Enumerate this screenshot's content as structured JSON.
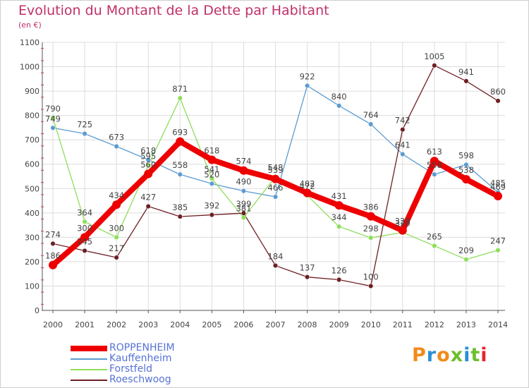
{
  "title": "Evolution du Montant de la Dette par Habitant",
  "subtitle": "(en €)",
  "logo": {
    "text": "Proxiti",
    "colors": [
      "#f28a1a",
      "#2a8fd6",
      "#f28a1a",
      "#6cbf2e",
      "#2a8fd6",
      "#6cbf2e",
      "#e8262c"
    ]
  },
  "chart_data": {
    "type": "line",
    "x": [
      "2000",
      "2001",
      "2002",
      "2003",
      "2004",
      "2005",
      "2006",
      "2007",
      "2008",
      "2009",
      "2010",
      "2011",
      "2012",
      "2013",
      "2014"
    ],
    "yticks": [
      "0",
      "100",
      "200",
      "300",
      "400",
      "500",
      "600",
      "700",
      "800",
      "900",
      "1000",
      "1100"
    ],
    "ylim": [
      0,
      1100
    ],
    "grid": true,
    "legend_position": "bottom-left",
    "series": [
      {
        "name": "Kauffenheim",
        "color": "#5b9bd1",
        "values": [
          749,
          725,
          673,
          618,
          558,
          520,
          490,
          466,
          922,
          840,
          764,
          641,
          558,
          598,
          485
        ]
      },
      {
        "name": "Forstfeld",
        "color": "#8ede5a",
        "values": [
          790,
          364,
          300,
          595,
          871,
          541,
          381,
          548,
          472,
          344,
          298,
          320,
          265,
          209,
          247
        ]
      },
      {
        "name": "Roeschwoog",
        "color": "#6e1f24",
        "values": [
          274,
          245,
          217,
          427,
          385,
          392,
          399,
          184,
          137,
          126,
          100,
          742,
          1005,
          941,
          860
        ]
      },
      {
        "name": "ROPPENHEIM",
        "color": "#ee0000",
        "values": [
          186,
          300,
          434,
          560,
          693,
          618,
          574,
          539,
          482,
          431,
          386,
          328,
          613,
          538,
          469
        ]
      }
    ]
  }
}
